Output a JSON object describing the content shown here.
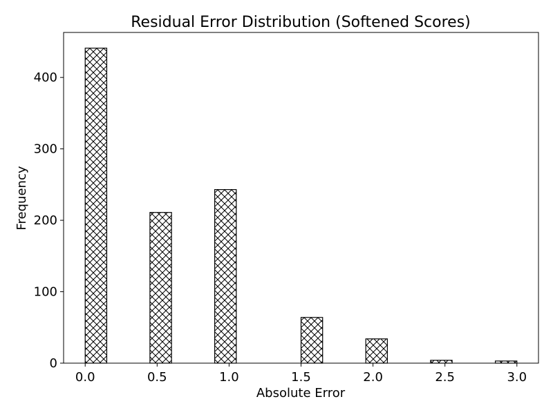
{
  "chart_data": {
    "type": "bar",
    "title": "Residual Error Distribution (Softened Scores)",
    "xlabel": "Absolute Error",
    "ylabel": "Frequency",
    "x": [
      0.075,
      0.525,
      0.975,
      1.575,
      2.025,
      2.475,
      2.925
    ],
    "values": [
      441,
      211,
      243,
      64,
      34,
      4,
      3
    ],
    "bar_width": 0.15,
    "xlim": [
      -0.15,
      3.15
    ],
    "ylim": [
      0,
      463
    ],
    "x_ticks": [
      0.0,
      0.5,
      1.0,
      1.5,
      2.0,
      2.5,
      3.0
    ],
    "x_tick_labels": [
      "0.0",
      "0.5",
      "1.0",
      "1.5",
      "2.0",
      "2.5",
      "3.0"
    ],
    "y_ticks": [
      0,
      100,
      200,
      300,
      400
    ],
    "y_tick_labels": [
      "0",
      "100",
      "200",
      "300",
      "400"
    ],
    "bar_fill": "#ffffff",
    "bar_edge": "#000000",
    "hatch": "crosshatch",
    "grid": false,
    "legend": "none"
  }
}
